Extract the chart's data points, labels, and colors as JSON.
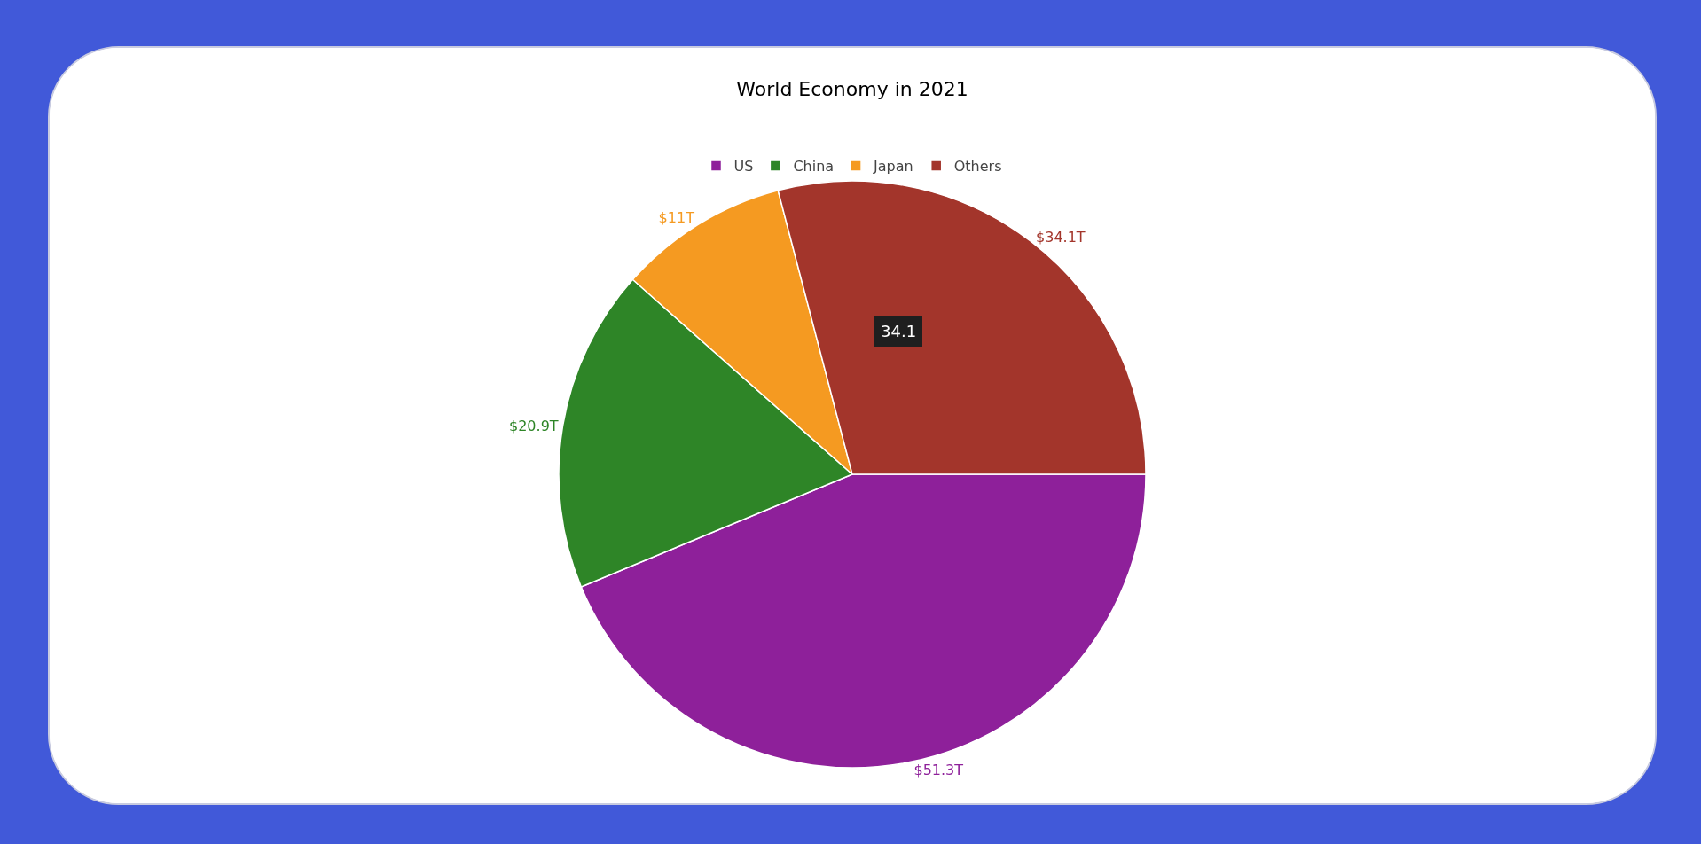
{
  "chart_data": {
    "type": "pie",
    "title": "World Economy in 2021",
    "categories": [
      "US",
      "China",
      "Japan",
      "Others"
    ],
    "values": [
      51.3,
      20.9,
      11,
      34.1
    ],
    "colors": [
      "#8e209a",
      "#2e8527",
      "#f59a21",
      "#a3352b"
    ],
    "value_labels": [
      "$51.3T",
      "$20.9T",
      "$11T",
      "$34.1T"
    ],
    "annotations": [
      "34.1"
    ],
    "legend": "top"
  }
}
